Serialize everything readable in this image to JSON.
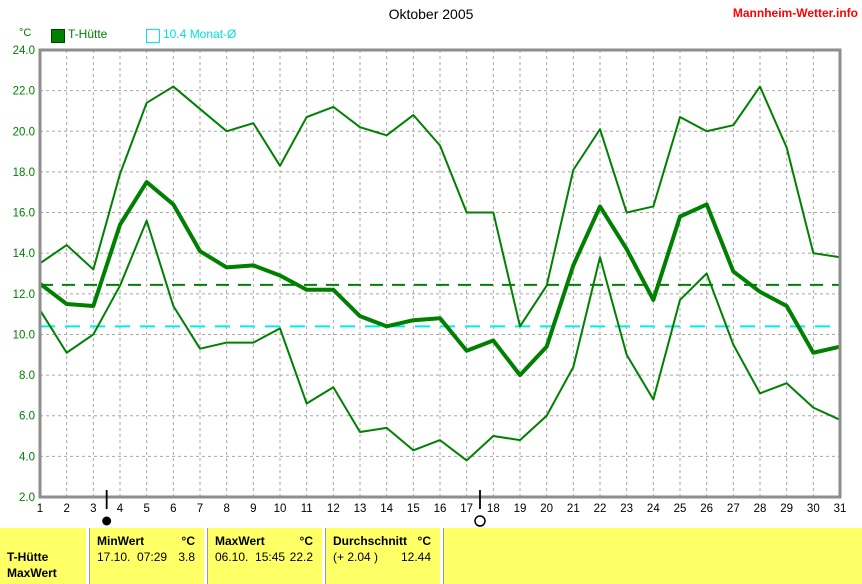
{
  "header": {
    "title": "Oktober 2005",
    "site": "Mannheim-Wetter.info"
  },
  "legend": {
    "unit": "°C",
    "series1_label": "T-Hütte",
    "series2_label": "10.4 Monat-Ø"
  },
  "chart_data": {
    "type": "line",
    "title": "Oktober 2005",
    "ylabel": "°C",
    "grid": true,
    "legend_position": "top-left",
    "ylim": [
      2,
      24
    ],
    "ytick_step": 2,
    "x": [
      1,
      2,
      3,
      4,
      5,
      6,
      7,
      8,
      9,
      10,
      11,
      12,
      13,
      14,
      15,
      16,
      17,
      18,
      19,
      20,
      21,
      22,
      23,
      24,
      25,
      26,
      27,
      28,
      29,
      30,
      31
    ],
    "series": [
      {
        "name": "T-Hütte Tagesmaximum",
        "color": "#008000",
        "width": 2,
        "values": [
          13.5,
          14.4,
          13.2,
          17.9,
          21.4,
          22.2,
          21.1,
          20.0,
          20.4,
          18.3,
          20.7,
          21.2,
          20.2,
          19.8,
          20.8,
          19.3,
          16.0,
          16.0,
          10.4,
          12.4,
          18.1,
          20.1,
          16.0,
          16.3,
          20.7,
          20.0,
          20.3,
          22.2,
          19.2,
          14.0,
          13.8
        ]
      },
      {
        "name": "T-Hütte Tagesmittel",
        "color": "#008000",
        "width": 4,
        "values": [
          12.5,
          11.5,
          11.4,
          15.4,
          17.5,
          16.4,
          14.1,
          13.3,
          13.4,
          12.9,
          12.2,
          12.2,
          10.9,
          10.4,
          10.7,
          10.8,
          9.2,
          9.7,
          8.0,
          9.4,
          13.4,
          16.3,
          14.2,
          11.7,
          15.8,
          16.4,
          13.1,
          12.1,
          11.4,
          9.1,
          9.4
        ]
      },
      {
        "name": "T-Hütte Tagesminimum",
        "color": "#008000",
        "width": 2,
        "values": [
          11.2,
          9.1,
          10.0,
          12.4,
          15.6,
          11.4,
          9.3,
          9.6,
          9.6,
          10.3,
          6.6,
          7.4,
          5.2,
          5.4,
          4.3,
          4.8,
          3.8,
          5.0,
          4.8,
          6.0,
          8.4,
          13.8,
          9.0,
          6.8,
          11.7,
          13.0,
          9.5,
          7.1,
          7.6,
          6.4,
          5.8
        ]
      }
    ],
    "reference_lines": [
      {
        "name": "Durchschnitt",
        "value": 12.44,
        "color": "#008000"
      },
      {
        "name": "10.4 Monat-Ø",
        "value": 10.4,
        "color": "#00eded"
      }
    ],
    "moon_markers": [
      {
        "day": 3.5,
        "phase": "new"
      },
      {
        "day": 17.5,
        "phase": "full"
      }
    ]
  },
  "footer": {
    "series_rows": [
      "T-Hütte",
      "MaxWert"
    ],
    "columns": [
      {
        "header": "MinWert",
        "unit": "°C",
        "detail": "17.10.  07:29",
        "value": "3.8"
      },
      {
        "header": "MaxWert",
        "unit": "°C",
        "detail": "06.10.  15:45",
        "value": "22.2"
      },
      {
        "header": "Durchschnitt",
        "unit": "°C",
        "detail": "(+ 2.04 )",
        "value": "12.44"
      }
    ]
  }
}
